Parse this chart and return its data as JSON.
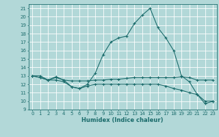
{
  "xlabel": "Humidex (Indice chaleur)",
  "xlim": [
    -0.5,
    23.5
  ],
  "ylim": [
    9,
    21.5
  ],
  "yticks": [
    9,
    10,
    11,
    12,
    13,
    14,
    15,
    16,
    17,
    18,
    19,
    20,
    21
  ],
  "xticks": [
    0,
    1,
    2,
    3,
    4,
    5,
    6,
    7,
    8,
    9,
    10,
    11,
    12,
    13,
    14,
    15,
    16,
    17,
    18,
    19,
    20,
    21,
    22,
    23
  ],
  "background_color": "#b2d8d8",
  "grid_color": "#ffffff",
  "line_color": "#1a6b6b",
  "line1": [
    [
      0,
      13.0
    ],
    [
      1,
      13.0
    ],
    [
      2,
      12.5
    ],
    [
      3,
      12.9
    ],
    [
      4,
      12.5
    ],
    [
      5,
      11.7
    ],
    [
      6,
      11.5
    ],
    [
      7,
      12.0
    ],
    [
      8,
      13.3
    ],
    [
      9,
      15.5
    ],
    [
      10,
      17.0
    ],
    [
      11,
      17.5
    ],
    [
      12,
      17.7
    ],
    [
      13,
      19.2
    ],
    [
      14,
      20.2
    ],
    [
      15,
      21.0
    ],
    [
      16,
      18.7
    ],
    [
      17,
      17.5
    ],
    [
      18,
      16.0
    ],
    [
      19,
      13.0
    ],
    [
      20,
      12.3
    ],
    [
      21,
      10.8
    ],
    [
      22,
      9.7
    ],
    [
      23,
      10.0
    ]
  ],
  "line2": [
    [
      0,
      13.0
    ],
    [
      1,
      12.8
    ],
    [
      2,
      12.5
    ],
    [
      3,
      12.8
    ],
    [
      4,
      12.5
    ],
    [
      5,
      12.4
    ],
    [
      6,
      12.4
    ],
    [
      7,
      12.4
    ],
    [
      8,
      12.5
    ],
    [
      9,
      12.5
    ],
    [
      10,
      12.6
    ],
    [
      11,
      12.6
    ],
    [
      12,
      12.7
    ],
    [
      13,
      12.8
    ],
    [
      14,
      12.8
    ],
    [
      15,
      12.8
    ],
    [
      16,
      12.8
    ],
    [
      17,
      12.8
    ],
    [
      18,
      12.8
    ],
    [
      19,
      12.9
    ],
    [
      20,
      12.8
    ],
    [
      21,
      12.5
    ],
    [
      22,
      12.5
    ],
    [
      23,
      12.5
    ]
  ],
  "line3": [
    [
      0,
      13.0
    ],
    [
      1,
      12.8
    ],
    [
      2,
      12.5
    ],
    [
      3,
      12.5
    ],
    [
      4,
      12.3
    ],
    [
      5,
      11.7
    ],
    [
      6,
      11.5
    ],
    [
      7,
      11.8
    ],
    [
      8,
      12.0
    ],
    [
      9,
      12.0
    ],
    [
      10,
      12.0
    ],
    [
      11,
      12.0
    ],
    [
      12,
      12.0
    ],
    [
      13,
      12.0
    ],
    [
      14,
      12.0
    ],
    [
      15,
      12.0
    ],
    [
      16,
      12.0
    ],
    [
      17,
      11.8
    ],
    [
      18,
      11.5
    ],
    [
      19,
      11.3
    ],
    [
      20,
      11.0
    ],
    [
      21,
      10.8
    ],
    [
      22,
      10.0
    ],
    [
      23,
      10.0
    ]
  ]
}
